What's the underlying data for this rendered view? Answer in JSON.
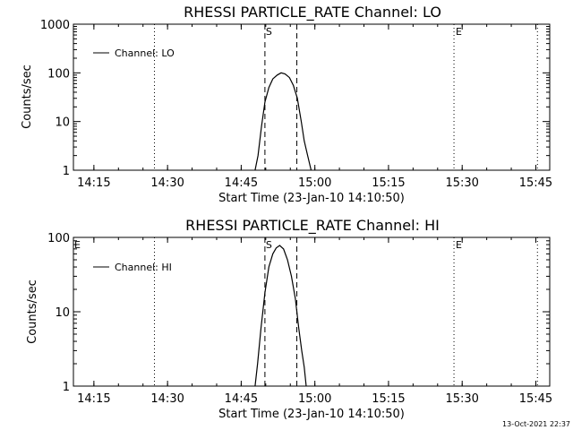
{
  "timestamp": "13-Oct-2021 22:37",
  "chart_data": [
    {
      "type": "line",
      "title": "RHESSI PARTICLE_RATE Channel: LO",
      "xlabel": "Start Time (23-Jan-10 14:10:50)",
      "ylabel": "Counts/sec",
      "yscale": "log",
      "ylim": [
        1,
        1000
      ],
      "xlim_minutes": [
        0,
        97
      ],
      "x_ticks": [
        {
          "t": 4.17,
          "label": "14:15"
        },
        {
          "t": 19.17,
          "label": "14:30"
        },
        {
          "t": 34.17,
          "label": "14:45"
        },
        {
          "t": 49.17,
          "label": "15:00"
        },
        {
          "t": 64.17,
          "label": "15:15"
        },
        {
          "t": 79.17,
          "label": "15:30"
        },
        {
          "t": 94.17,
          "label": "15:45"
        }
      ],
      "y_ticks": [
        {
          "v": 1,
          "label": "1"
        },
        {
          "v": 10,
          "label": "10"
        },
        {
          "v": 100,
          "label": "100"
        },
        {
          "v": 1000,
          "label": "1000"
        }
      ],
      "legend": "Channel: LO",
      "legend_position": "top-left",
      "series": [
        {
          "name": "Channel: LO",
          "t": [
            37.0,
            37.6,
            38.3,
            39.0,
            39.8,
            40.6,
            41.5,
            42.3,
            43.1,
            44.0,
            44.8,
            45.6,
            46.4,
            47.0,
            47.7,
            48.4
          ],
          "values": [
            1,
            2,
            8,
            25,
            50,
            75,
            90,
            100,
            95,
            80,
            55,
            30,
            10,
            4,
            2,
            1
          ]
        }
      ],
      "vlines_dashed": [
        {
          "t": 39.0,
          "label": "S"
        },
        {
          "t": 45.5,
          "label": ""
        }
      ],
      "vlines_dotted": [
        {
          "t": 16.5,
          "label": ""
        },
        {
          "t": 77.5,
          "label": "E"
        },
        {
          "t": 94.5,
          "label": ""
        }
      ],
      "corner_mark": ""
    },
    {
      "type": "line",
      "title": "RHESSI PARTICLE_RATE Channel: HI",
      "xlabel": "Start Time (23-Jan-10 14:10:50)",
      "ylabel": "Counts/sec",
      "yscale": "log",
      "ylim": [
        1,
        100
      ],
      "xlim_minutes": [
        0,
        97
      ],
      "x_ticks": [
        {
          "t": 4.17,
          "label": "14:15"
        },
        {
          "t": 19.17,
          "label": "14:30"
        },
        {
          "t": 34.17,
          "label": "14:45"
        },
        {
          "t": 49.17,
          "label": "15:00"
        },
        {
          "t": 64.17,
          "label": "15:15"
        },
        {
          "t": 79.17,
          "label": "15:30"
        },
        {
          "t": 94.17,
          "label": "15:45"
        }
      ],
      "y_ticks": [
        {
          "v": 1,
          "label": "1"
        },
        {
          "v": 10,
          "label": "10"
        },
        {
          "v": 100,
          "label": "100"
        }
      ],
      "legend": "Channel: HI",
      "legend_position": "top-left",
      "series": [
        {
          "name": "Channel: HI",
          "t": [
            37.0,
            37.5,
            38.2,
            39.0,
            39.8,
            40.6,
            41.3,
            42.0,
            42.8,
            43.6,
            44.4,
            45.2,
            45.9,
            46.5,
            47.0,
            47.4
          ],
          "values": [
            1,
            2,
            6,
            18,
            40,
            60,
            72,
            78,
            70,
            50,
            30,
            15,
            6,
            3,
            1.8,
            1
          ]
        }
      ],
      "vlines_dashed": [
        {
          "t": 39.0,
          "label": "S"
        },
        {
          "t": 45.5,
          "label": ""
        }
      ],
      "vlines_dotted": [
        {
          "t": 16.5,
          "label": ""
        },
        {
          "t": 77.5,
          "label": "E"
        },
        {
          "t": 94.5,
          "label": ""
        }
      ],
      "corner_mark": "E"
    }
  ]
}
